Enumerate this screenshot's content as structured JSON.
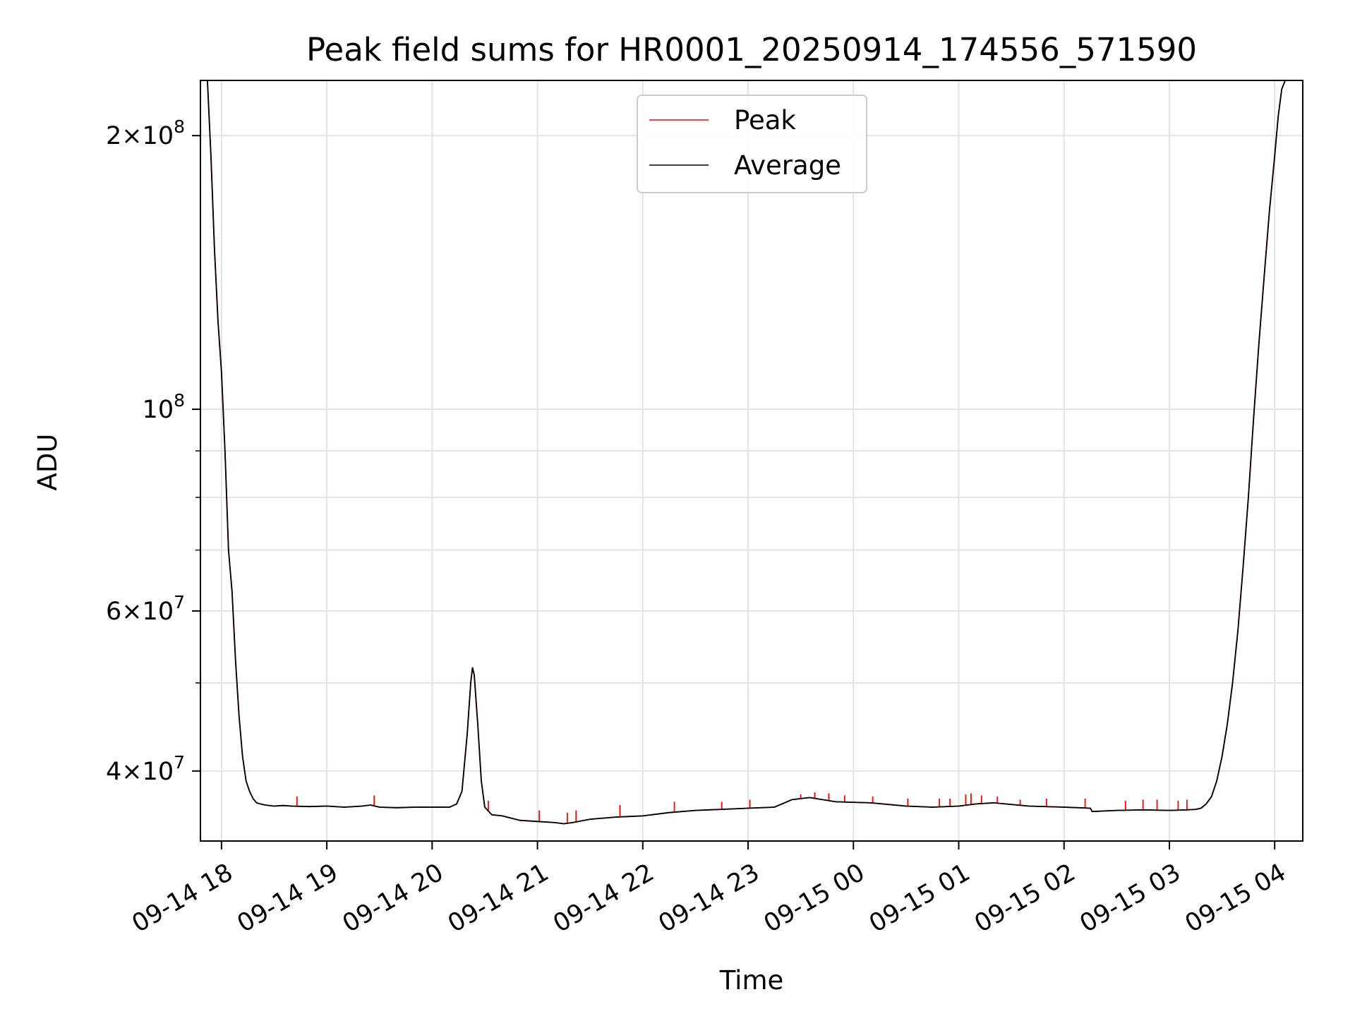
{
  "chart_data": {
    "type": "line",
    "title": "Peak field sums for HR0001_20250914_174556_571590",
    "xlabel": "Time",
    "ylabel": "ADU",
    "yscale": "log",
    "ylim": [
      33500000,
      230000000
    ],
    "xlim": [
      "2025-09-14 17:48",
      "2025-09-15 04:16"
    ],
    "grid": true,
    "legend_position": "upper center",
    "x_ticks": [
      {
        "value": "2025-09-14 18:00",
        "label": "09-14 18"
      },
      {
        "value": "2025-09-14 19:00",
        "label": "09-14 19"
      },
      {
        "value": "2025-09-14 20:00",
        "label": "09-14 20"
      },
      {
        "value": "2025-09-14 21:00",
        "label": "09-14 21"
      },
      {
        "value": "2025-09-14 22:00",
        "label": "09-14 22"
      },
      {
        "value": "2025-09-14 23:00",
        "label": "09-14 23"
      },
      {
        "value": "2025-09-15 00:00",
        "label": "09-15 00"
      },
      {
        "value": "2025-09-15 01:00",
        "label": "09-15 01"
      },
      {
        "value": "2025-09-15 02:00",
        "label": "09-15 02"
      },
      {
        "value": "2025-09-15 03:00",
        "label": "09-15 03"
      },
      {
        "value": "2025-09-15 04:00",
        "label": "09-15 04"
      }
    ],
    "y_major_ticks": [
      {
        "value": 40000000,
        "mant": "4",
        "exp": "7"
      },
      {
        "value": 60000000,
        "mant": "6",
        "exp": "7"
      },
      {
        "value": 100000000,
        "mant": "",
        "exp": "8"
      },
      {
        "value": 200000000,
        "mant": "2",
        "exp": "8"
      }
    ],
    "y_minor_ticks": [
      50000000,
      70000000,
      80000000,
      90000000
    ],
    "series": [
      {
        "name": "Average",
        "color": "#000000",
        "x": [
          "2025-09-14 17:52",
          "2025-09-14 17:54",
          "2025-09-14 17:56",
          "2025-09-14 17:58",
          "2025-09-14 18:00",
          "2025-09-14 18:02",
          "2025-09-14 18:04",
          "2025-09-14 18:06",
          "2025-09-14 18:08",
          "2025-09-14 18:10",
          "2025-09-14 18:12",
          "2025-09-14 18:14",
          "2025-09-14 18:16",
          "2025-09-14 18:18",
          "2025-09-14 18:20",
          "2025-09-14 18:22",
          "2025-09-14 18:25",
          "2025-09-14 18:30",
          "2025-09-14 18:35",
          "2025-09-14 18:40",
          "2025-09-14 18:50",
          "2025-09-14 19:00",
          "2025-09-14 19:10",
          "2025-09-14 19:20",
          "2025-09-14 19:25",
          "2025-09-14 19:30",
          "2025-09-14 19:40",
          "2025-09-14 19:50",
          "2025-09-14 20:00",
          "2025-09-14 20:10",
          "2025-09-14 20:14",
          "2025-09-14 20:17",
          "2025-09-14 20:20",
          "2025-09-14 20:22",
          "2025-09-14 20:23",
          "2025-09-14 20:24",
          "2025-09-14 20:26",
          "2025-09-14 20:28",
          "2025-09-14 20:30",
          "2025-09-14 20:34",
          "2025-09-14 20:40",
          "2025-09-14 20:50",
          "2025-09-14 21:00",
          "2025-09-14 21:10",
          "2025-09-14 21:15",
          "2025-09-14 21:20",
          "2025-09-14 21:30",
          "2025-09-14 21:45",
          "2025-09-14 22:00",
          "2025-09-14 22:15",
          "2025-09-14 22:30",
          "2025-09-14 22:45",
          "2025-09-14 23:00",
          "2025-09-14 23:15",
          "2025-09-14 23:25",
          "2025-09-14 23:35",
          "2025-09-14 23:50",
          "2025-09-15 00:10",
          "2025-09-15 00:30",
          "2025-09-15 00:45",
          "2025-09-15 01:00",
          "2025-09-15 01:10",
          "2025-09-15 01:20",
          "2025-09-15 01:40",
          "2025-09-15 02:00",
          "2025-09-15 02:15",
          "2025-09-15 02:16",
          "2025-09-15 02:30",
          "2025-09-15 02:45",
          "2025-09-15 03:00",
          "2025-09-15 03:10",
          "2025-09-15 03:15",
          "2025-09-15 03:18",
          "2025-09-15 03:21",
          "2025-09-15 03:24",
          "2025-09-15 03:27",
          "2025-09-15 03:30",
          "2025-09-15 03:33",
          "2025-09-15 03:36",
          "2025-09-15 03:39",
          "2025-09-15 03:42",
          "2025-09-15 03:45",
          "2025-09-15 03:48",
          "2025-09-15 03:51",
          "2025-09-15 03:54",
          "2025-09-15 03:57",
          "2025-09-15 04:00",
          "2025-09-15 04:02",
          "2025-09-15 04:04",
          "2025-09-15 04:06"
        ],
        "y": [
          230000000,
          190000000,
          150000000,
          125000000,
          110000000,
          90000000,
          70000000,
          63000000,
          53000000,
          46000000,
          41500000,
          39000000,
          38000000,
          37300000,
          36900000,
          36800000,
          36700000,
          36600000,
          36650000,
          36600000,
          36550000,
          36600000,
          36500000,
          36600000,
          36700000,
          36500000,
          36450000,
          36500000,
          36500000,
          36500000,
          36800000,
          38000000,
          44000000,
          50000000,
          52000000,
          51000000,
          45000000,
          39000000,
          36500000,
          35800000,
          35700000,
          35300000,
          35200000,
          35100000,
          35000000,
          35100000,
          35400000,
          35600000,
          35700000,
          36000000,
          36200000,
          36300000,
          36400000,
          36500000,
          37200000,
          37400000,
          37000000,
          36900000,
          36600000,
          36500000,
          36600000,
          36800000,
          36900000,
          36600000,
          36500000,
          36400000,
          36100000,
          36200000,
          36250000,
          36200000,
          36250000,
          36300000,
          36400000,
          36800000,
          37500000,
          39000000,
          41500000,
          45000000,
          50000000,
          57000000,
          67000000,
          80000000,
          98000000,
          118000000,
          140000000,
          165000000,
          190000000,
          210000000,
          225000000,
          230000000
        ]
      },
      {
        "name": "Peak",
        "color": "#ff0000",
        "spikes": [
          {
            "x": "2025-09-14 18:43",
            "y": 37500000
          },
          {
            "x": "2025-09-14 19:27",
            "y": 37600000
          },
          {
            "x": "2025-09-14 20:32",
            "y": 37100000
          },
          {
            "x": "2025-09-14 21:01",
            "y": 36200000
          },
          {
            "x": "2025-09-14 21:17",
            "y": 36000000
          },
          {
            "x": "2025-09-14 21:22",
            "y": 36200000
          },
          {
            "x": "2025-09-14 21:47",
            "y": 36700000
          },
          {
            "x": "2025-09-14 22:18",
            "y": 37000000
          },
          {
            "x": "2025-09-14 22:45",
            "y": 37000000
          },
          {
            "x": "2025-09-14 23:01",
            "y": 37200000
          },
          {
            "x": "2025-09-14 23:30",
            "y": 37700000
          },
          {
            "x": "2025-09-14 23:38",
            "y": 37900000
          },
          {
            "x": "2025-09-14 23:46",
            "y": 37800000
          },
          {
            "x": "2025-09-14 23:55",
            "y": 37600000
          },
          {
            "x": "2025-09-15 00:11",
            "y": 37500000
          },
          {
            "x": "2025-09-15 00:31",
            "y": 37300000
          },
          {
            "x": "2025-09-15 00:49",
            "y": 37300000
          },
          {
            "x": "2025-09-15 00:55",
            "y": 37300000
          },
          {
            "x": "2025-09-15 01:04",
            "y": 37700000
          },
          {
            "x": "2025-09-15 01:07",
            "y": 37800000
          },
          {
            "x": "2025-09-15 01:13",
            "y": 37600000
          },
          {
            "x": "2025-09-15 01:22",
            "y": 37500000
          },
          {
            "x": "2025-09-15 01:35",
            "y": 37200000
          },
          {
            "x": "2025-09-15 01:50",
            "y": 37300000
          },
          {
            "x": "2025-09-15 02:12",
            "y": 37300000
          },
          {
            "x": "2025-09-15 02:35",
            "y": 37100000
          },
          {
            "x": "2025-09-15 02:45",
            "y": 37200000
          },
          {
            "x": "2025-09-15 02:53",
            "y": 37200000
          },
          {
            "x": "2025-09-15 03:05",
            "y": 37100000
          },
          {
            "x": "2025-09-15 03:10",
            "y": 37200000
          }
        ]
      }
    ]
  }
}
